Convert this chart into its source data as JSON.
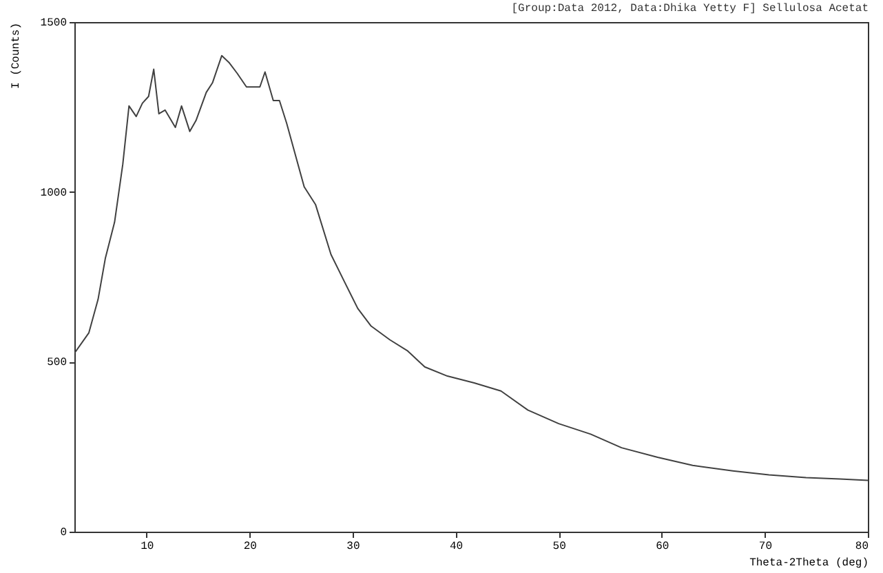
{
  "chart_data": {
    "type": "line",
    "title": "[Group:Data 2012, Data:Dhika Yetty F] Sellulosa Acetat",
    "xlabel": "Theta-2Theta (deg)",
    "ylabel": "I (Counts)",
    "xlim": [
      3,
      80
    ],
    "ylim": [
      0,
      1500
    ],
    "xticks": [
      10,
      20,
      30,
      40,
      50,
      60,
      70,
      80
    ],
    "yticks": [
      0,
      500,
      1000,
      1500
    ],
    "grid": false,
    "legend": false,
    "marker": "none",
    "line_style": "solid",
    "series": [
      {
        "color": "#404040",
        "x": [
          3,
          4.4,
          5.3,
          6.0,
          6.9,
          7.7,
          8.3,
          9.0,
          9.6,
          10.2,
          10.7,
          11.2,
          11.8,
          12.8,
          13.4,
          14.2,
          14.8,
          15.8,
          16.4,
          17.3,
          18.0,
          18.8,
          19.7,
          21.0,
          21.5,
          22.3,
          22.9,
          23.6,
          25.3,
          26.4,
          27.9,
          29.2,
          30.5,
          31.8,
          33.6,
          35.3,
          37.0,
          39.2,
          41.8,
          44.4,
          47.0,
          50.0,
          53.1,
          56.1,
          59.6,
          63.0,
          66.9,
          70.4,
          74.0,
          77.3,
          80
        ],
        "values": [
          525,
          585,
          684,
          804,
          911,
          1082,
          1253,
          1222,
          1261,
          1281,
          1361,
          1230,
          1241,
          1190,
          1253,
          1178,
          1210,
          1293,
          1321,
          1401,
          1381,
          1349,
          1309,
          1309,
          1353,
          1269,
          1269,
          1202,
          1015,
          963,
          816,
          736,
          657,
          605,
          565,
          533,
          485,
          458,
          438,
          414,
          358,
          318,
          287,
          247,
          219,
          195,
          179,
          167,
          159,
          155,
          151
        ]
      }
    ]
  }
}
